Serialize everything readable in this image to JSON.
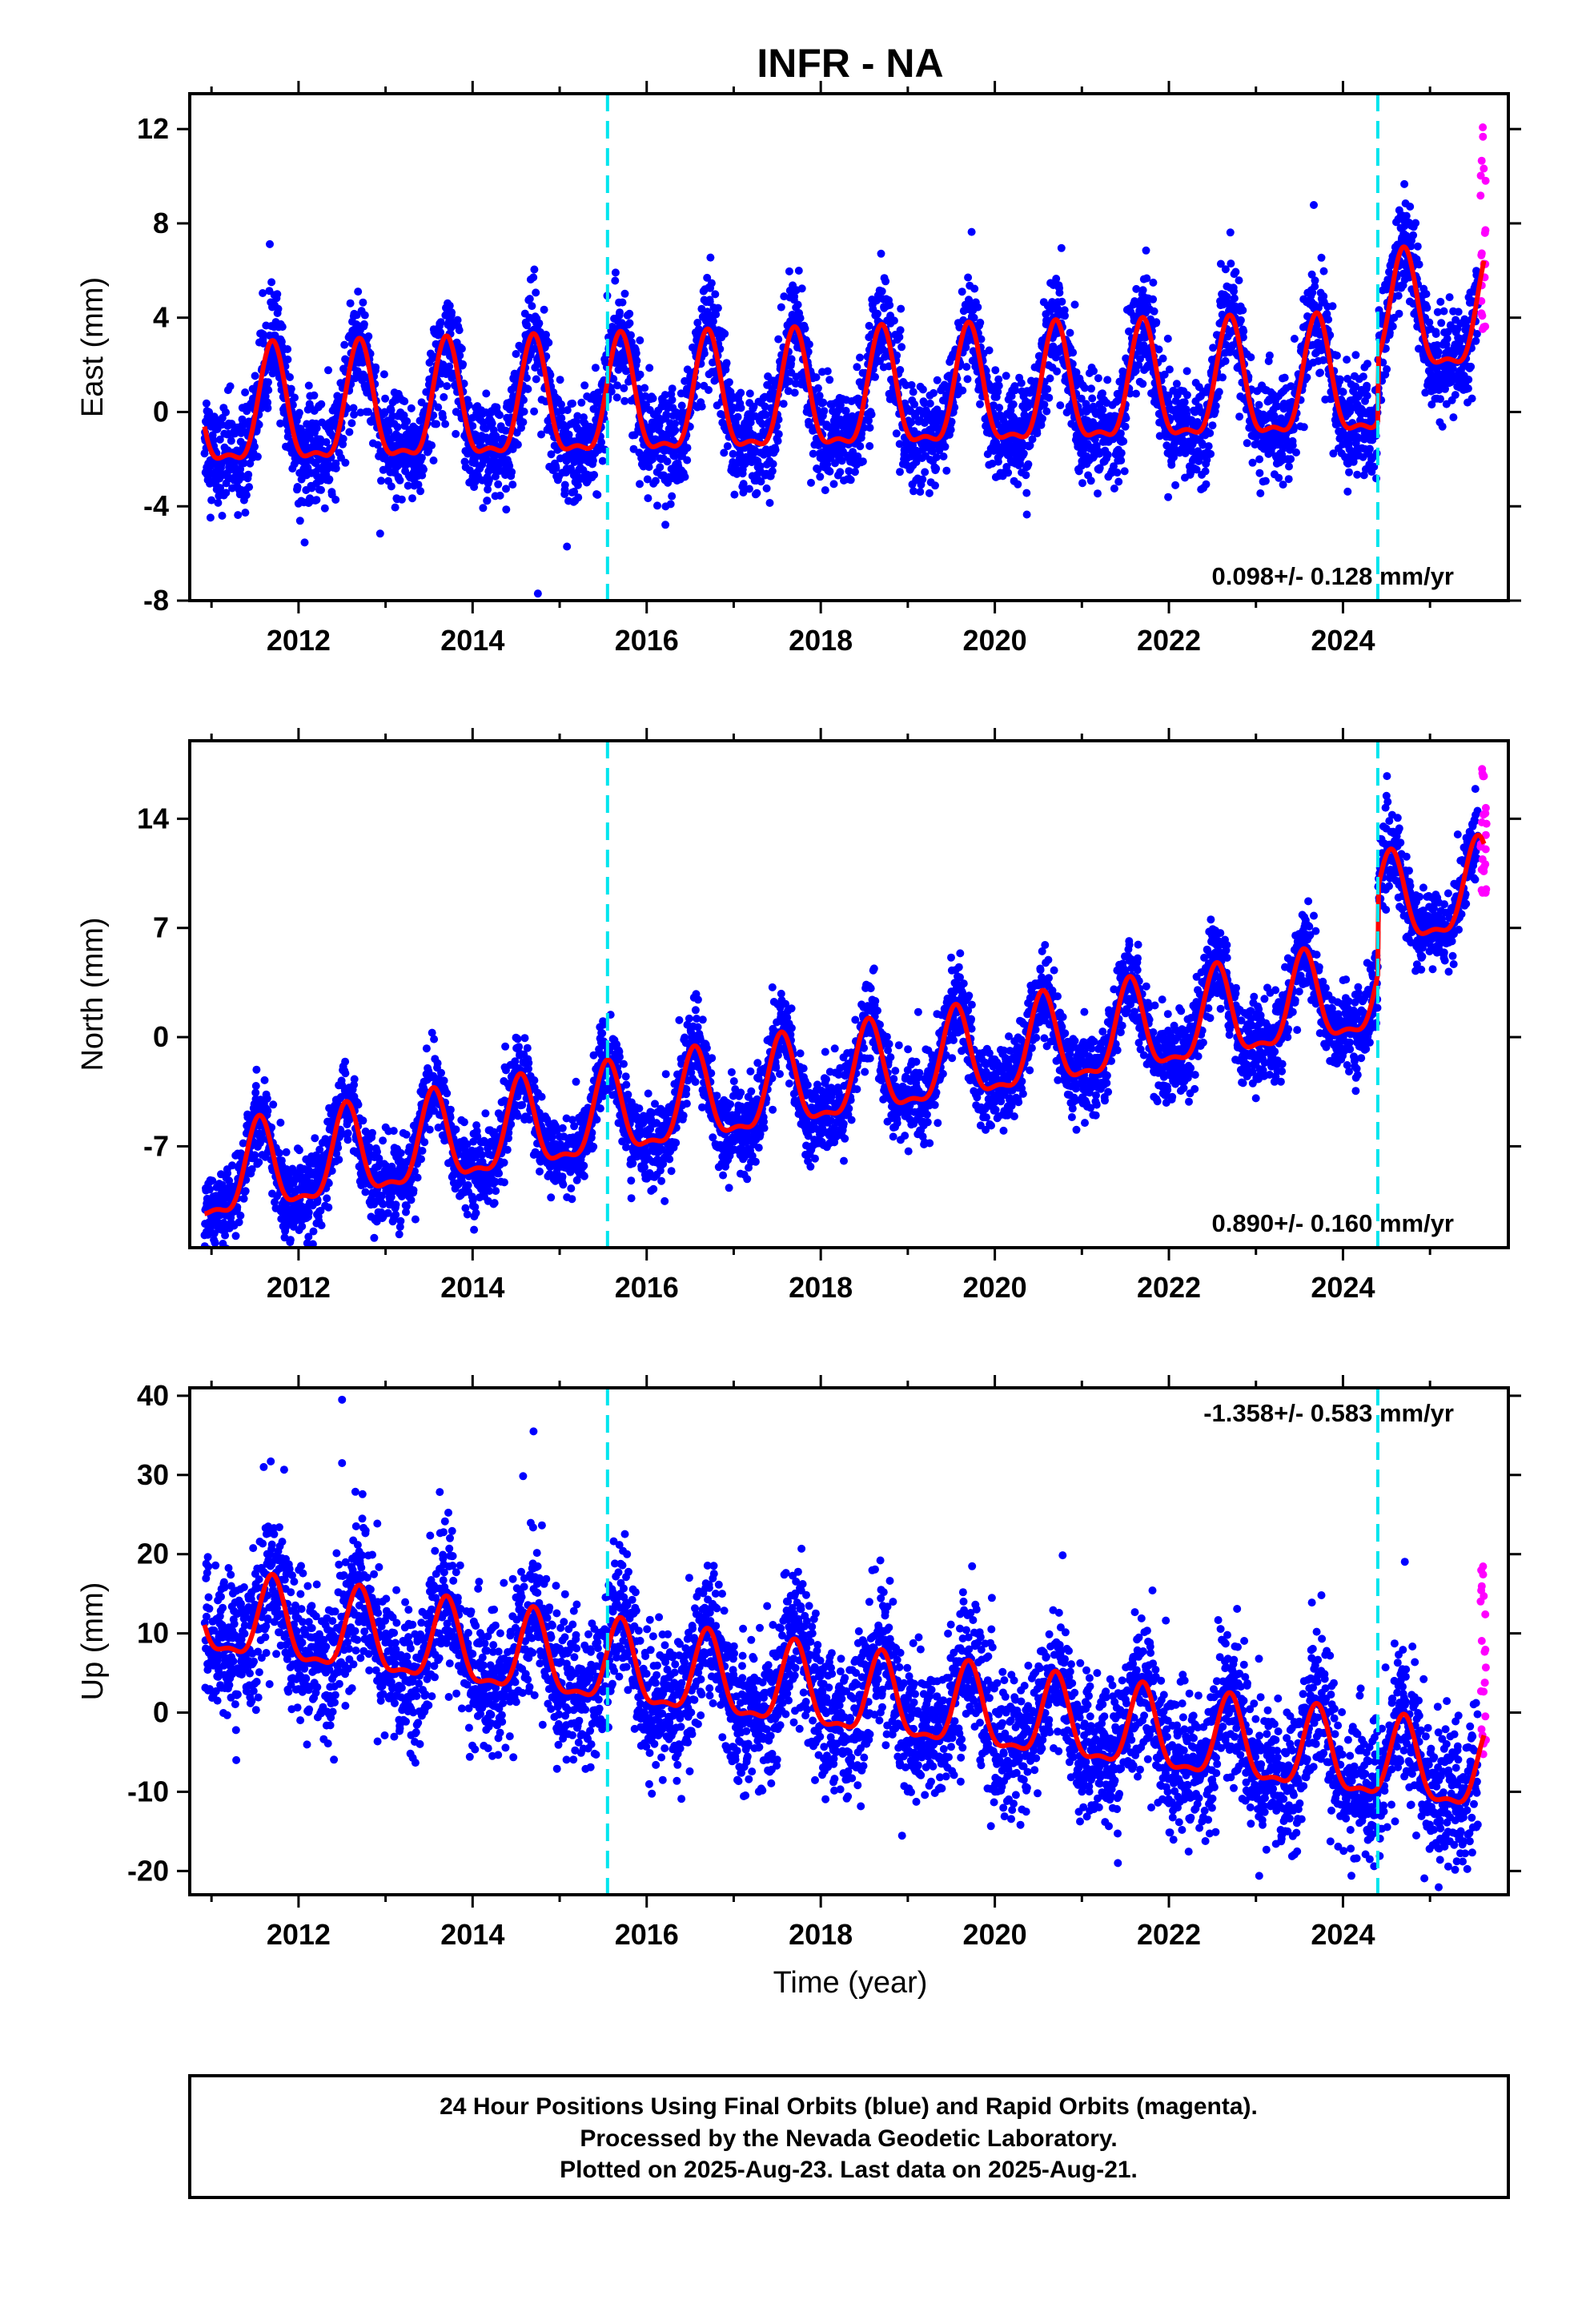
{
  "title": "INFR - NA",
  "xlabel": "Time (year)",
  "footer": {
    "line1": "24 Hour Positions Using Final Orbits (blue) and Rapid Orbits (magenta).",
    "line2": "Processed by the Nevada Geodetic Laboratory.",
    "line3": "Plotted on 2025-Aug-23. Last data on 2025-Aug-21."
  },
  "colors": {
    "final_points": "#0000ff",
    "rapid_points": "#ff00ff",
    "model_line": "#ff0000",
    "breaks": "#00e5ee",
    "frame": "#000000"
  },
  "chart_data": [
    {
      "type": "scatter",
      "component": "East",
      "ylabel": "East (mm)",
      "xlim": [
        2010.75,
        2025.9
      ],
      "ylim": [
        -8,
        13.5
      ],
      "yticks": [
        -8,
        -4,
        0,
        4,
        8,
        12
      ],
      "xticks": [
        2012,
        2014,
        2016,
        2018,
        2020,
        2022,
        2024
      ],
      "rate_text": "0.098+/- 0.128 mm/yr",
      "rate_position": "bottom-right",
      "rate": 0.098,
      "breaks": [
        2015.55,
        2024.4
      ],
      "model": {
        "base": -0.3,
        "season_amp": 2.4,
        "season_phase": 2011.7,
        "step_at": 2024.4,
        "step": 2.7,
        "noise_sd": 1.1
      },
      "rapid_range": [
        3.5,
        13.0
      ],
      "outliers": [
        {
          "x": 2014.75,
          "y": -7.7
        }
      ]
    },
    {
      "type": "scatter",
      "component": "North",
      "ylabel": "North (mm)",
      "xlim": [
        2010.75,
        2025.9
      ],
      "ylim": [
        -13.5,
        19
      ],
      "yticks": [
        -7,
        0,
        7,
        14
      ],
      "xticks": [
        2012,
        2014,
        2016,
        2018,
        2020,
        2022,
        2024
      ],
      "rate_text": "0.890+/- 0.160 mm/yr",
      "rate_position": "bottom-right",
      "rate": 0.89,
      "breaks": [
        2015.55,
        2024.4
      ],
      "model": {
        "base": -9.5,
        "season_amp": 2.8,
        "season_phase": 2011.55,
        "step_at": 2024.4,
        "step": 5.5,
        "noise_sd": 1.3
      },
      "rapid_range": [
        8.5,
        18.0
      ],
      "outliers": []
    },
    {
      "type": "scatter",
      "component": "Up",
      "ylabel": "Up (mm)",
      "xlim": [
        2010.75,
        2025.9
      ],
      "ylim": [
        -23,
        41
      ],
      "yticks": [
        -20,
        -10,
        0,
        10,
        20,
        30,
        40
      ],
      "xticks": [
        2012,
        2014,
        2016,
        2018,
        2020,
        2022,
        2024
      ],
      "rate_text": "-1.358+/- 0.583 mm/yr",
      "rate_position": "top-right",
      "rate": -1.358,
      "breaks": [
        2015.55,
        2024.4
      ],
      "model": {
        "base": 12.0,
        "season_amp": 5.0,
        "season_phase": 2011.7,
        "step_at": 2024.4,
        "step": 0,
        "noise_sd": 4.5
      },
      "rapid_range": [
        -8,
        19
      ],
      "outliers": [
        {
          "x": 2012.5,
          "y": 39.5
        },
        {
          "x": 2014.7,
          "y": 35.5
        },
        {
          "x": 2012.5,
          "y": 31.5
        },
        {
          "x": 2011.6,
          "y": 31.0
        }
      ]
    }
  ]
}
